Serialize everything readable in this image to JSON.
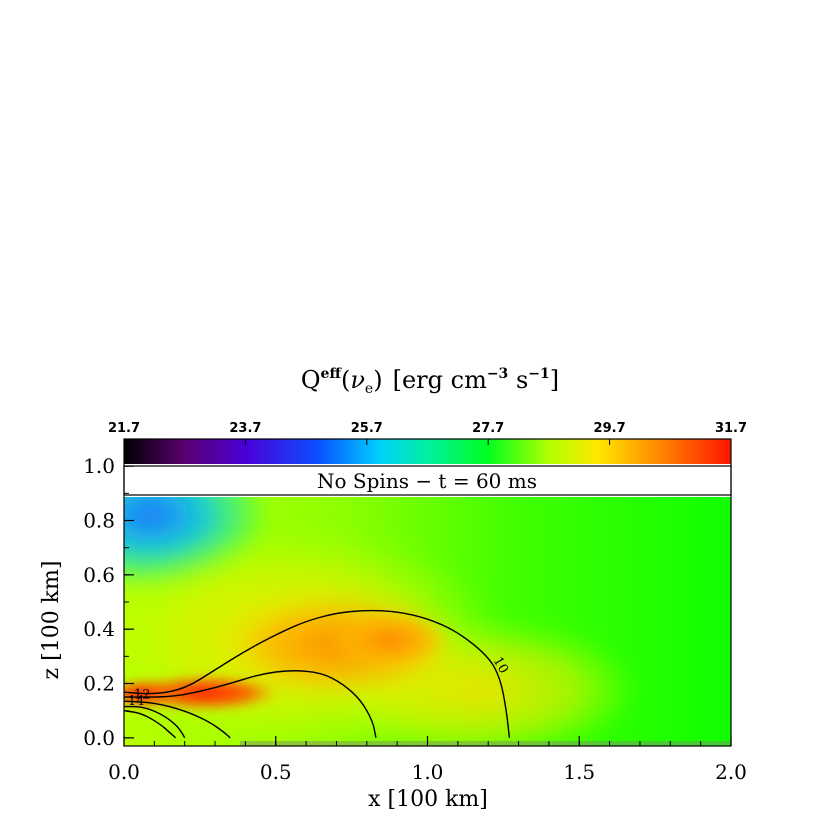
{
  "chart_data": {
    "type": "heatmap",
    "title": {
      "main": "Q",
      "superscript": "eff",
      "open": "(",
      "greek": "ν",
      "subscript": "e",
      "close": ")",
      "units_a": "[erg cm",
      "units_exp1": "−3",
      "units_b": " s",
      "units_exp2": "−1",
      "units_c": "]"
    },
    "panel_label": "No Spins − t = 60 ms",
    "xlabel": "x [100 km]",
    "ylabel": "z [100 km]",
    "xlim": [
      0.0,
      2.0
    ],
    "ylim": [
      -0.03,
      1.1
    ],
    "x_ticks": [
      "0.0",
      "0.5",
      "1.0",
      "1.5",
      "2.0"
    ],
    "x_tick_values": [
      0.0,
      0.5,
      1.0,
      1.5,
      2.0
    ],
    "y_ticks": [
      "0.0",
      "0.2",
      "0.4",
      "0.6",
      "0.8",
      "1.0"
    ],
    "y_tick_values": [
      0.0,
      0.2,
      0.4,
      0.6,
      0.8,
      1.0
    ],
    "colorbar": {
      "range": [
        21.7,
        31.7
      ],
      "tick_labels": [
        "21.7",
        "23.7",
        "25.7",
        "27.7",
        "29.7",
        "31.7"
      ],
      "tick_values": [
        21.7,
        23.7,
        25.7,
        27.7,
        29.7,
        31.7
      ],
      "colormap": "rainbow (black-purple-blue-cyan-green-yellow-orange-red)"
    },
    "heatmap_data_extent": {
      "x": [
        0.0,
        2.0
      ],
      "z": [
        -0.03,
        0.88
      ]
    },
    "contours": [
      {
        "label": "10",
        "points": [
          [
            0.0,
            0.168
          ],
          [
            0.1,
            0.16
          ],
          [
            0.2,
            0.18
          ],
          [
            0.3,
            0.25
          ],
          [
            0.4,
            0.32
          ],
          [
            0.5,
            0.38
          ],
          [
            0.6,
            0.43
          ],
          [
            0.7,
            0.46
          ],
          [
            0.8,
            0.47
          ],
          [
            0.9,
            0.465
          ],
          [
            1.0,
            0.44
          ],
          [
            1.1,
            0.39
          ],
          [
            1.2,
            0.3
          ],
          [
            1.24,
            0.22
          ],
          [
            1.26,
            0.1
          ],
          [
            1.27,
            0.0
          ]
        ]
      },
      {
        "label": "",
        "points": [
          [
            0.0,
            0.15
          ],
          [
            0.15,
            0.15
          ],
          [
            0.25,
            0.17
          ],
          [
            0.35,
            0.2
          ],
          [
            0.45,
            0.235
          ],
          [
            0.55,
            0.25
          ],
          [
            0.65,
            0.24
          ],
          [
            0.72,
            0.2
          ],
          [
            0.78,
            0.14
          ],
          [
            0.82,
            0.06
          ],
          [
            0.83,
            0.0
          ]
        ]
      },
      {
        "label": "12",
        "points": [
          [
            0.0,
            0.135
          ],
          [
            0.1,
            0.13
          ],
          [
            0.2,
            0.1
          ],
          [
            0.28,
            0.06
          ],
          [
            0.33,
            0.02
          ],
          [
            0.35,
            0.0
          ]
        ]
      },
      {
        "label": "14",
        "points": [
          [
            0.0,
            0.115
          ],
          [
            0.06,
            0.115
          ],
          [
            0.12,
            0.09
          ],
          [
            0.17,
            0.05
          ],
          [
            0.19,
            0.02
          ],
          [
            0.2,
            0.0
          ]
        ]
      },
      {
        "label": "",
        "points": [
          [
            0.0,
            0.1
          ],
          [
            0.06,
            0.09
          ],
          [
            0.12,
            0.05
          ],
          [
            0.15,
            0.02
          ],
          [
            0.17,
            0.0
          ]
        ]
      }
    ]
  }
}
